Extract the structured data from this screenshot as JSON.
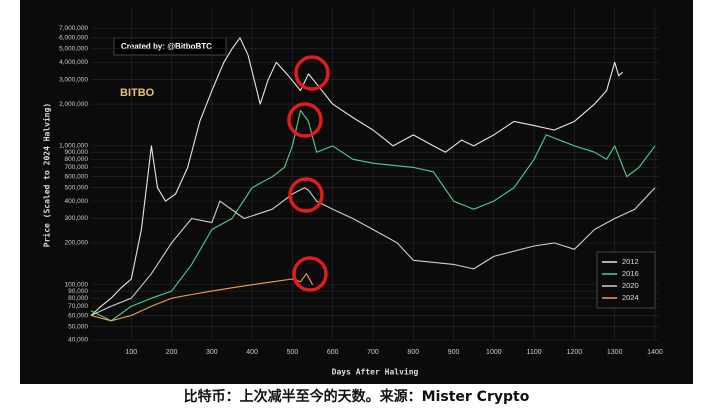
{
  "chart_data": {
    "type": "line",
    "ylabel": "Price (Scaled to 2024 Halving)",
    "xlabel": "Days After Halving",
    "annotations": [
      "Created by: @BitboBTC",
      "BITBO"
    ],
    "caption": "比特币：上次减半至今的天数。来源：Mister Crypto",
    "log_y": true,
    "grid": true,
    "legend": "lower right",
    "xlim": [
      0,
      1410
    ],
    "ylim": [
      40000,
      10000000
    ],
    "xticks": [
      100,
      200,
      300,
      400,
      500,
      600,
      700,
      800,
      900,
      1000,
      1100,
      1200,
      1300,
      1400
    ],
    "yticks": [
      {
        "value": 40000,
        "label": "40,000"
      },
      {
        "value": 50000,
        "label": "50,000"
      },
      {
        "value": 60000,
        "label": "60,000"
      },
      {
        "value": 70000,
        "label": "70,000"
      },
      {
        "value": 80000,
        "label": "80,000"
      },
      {
        "value": 90000,
        "label": "90,000"
      },
      {
        "value": 100000,
        "label": "100,000"
      },
      {
        "value": 200000,
        "label": "200,000"
      },
      {
        "value": 300000,
        "label": "300,000"
      },
      {
        "value": 400000,
        "label": "400,000"
      },
      {
        "value": 500000,
        "label": "500,000"
      },
      {
        "value": 600000,
        "label": "600,000"
      },
      {
        "value": 700000,
        "label": "700,000"
      },
      {
        "value": 800000,
        "label": "800,000"
      },
      {
        "value": 900000,
        "label": "900,000"
      },
      {
        "value": 1000000,
        "label": "1,000,000"
      },
      {
        "value": 2000000,
        "label": "2,000,000"
      },
      {
        "value": 3000000,
        "label": "3,000,000"
      },
      {
        "value": 4000000,
        "label": "4,000,000"
      },
      {
        "value": 5000000,
        "label": "5,000,000"
      },
      {
        "value": 6000000,
        "label": "6,000,000"
      },
      {
        "value": 7000000,
        "label": "7,000,000"
      }
    ],
    "series": [
      {
        "name": "2012",
        "color": "#e6e6e6",
        "x": [
          0,
          25,
          50,
          75,
          100,
          125,
          150,
          165,
          185,
          210,
          240,
          270,
          300,
          330,
          350,
          370,
          390,
          420,
          440,
          460,
          490,
          520,
          540,
          560,
          600,
          650,
          700,
          750,
          800,
          850,
          880,
          920,
          950,
          1000,
          1050,
          1100,
          1150,
          1200,
          1250,
          1280,
          1300,
          1310,
          1320
        ],
        "values": [
          60000,
          70000,
          80000,
          95000,
          110000,
          250000,
          1000000,
          500000,
          400000,
          450000,
          700000,
          1500000,
          2500000,
          4000000,
          5000000,
          6000000,
          4500000,
          2000000,
          3000000,
          4000000,
          3200000,
          2500000,
          3300000,
          2800000,
          2000000,
          1600000,
          1300000,
          1000000,
          1200000,
          1000000,
          900000,
          1100000,
          1000000,
          1200000,
          1500000,
          1400000,
          1300000,
          1500000,
          2000000,
          2500000,
          4000000,
          3200000,
          3400000
        ]
      },
      {
        "name": "2016",
        "color": "#4fd18b",
        "x": [
          0,
          50,
          100,
          150,
          200,
          250,
          300,
          350,
          400,
          450,
          480,
          500,
          520,
          540,
          560,
          600,
          650,
          700,
          800,
          850,
          900,
          950,
          1000,
          1050,
          1100,
          1130,
          1200,
          1250,
          1280,
          1300,
          1330,
          1360,
          1400
        ],
        "values": [
          65000,
          55000,
          70000,
          80000,
          90000,
          140000,
          250000,
          300000,
          500000,
          600000,
          700000,
          1000000,
          1800000,
          1500000,
          900000,
          1000000,
          800000,
          750000,
          700000,
          650000,
          400000,
          350000,
          400000,
          500000,
          800000,
          1200000,
          1000000,
          900000,
          800000,
          1000000,
          600000,
          700000,
          1000000
        ]
      },
      {
        "name": "2020",
        "color": "#cfcfcf",
        "x": [
          0,
          50,
          100,
          150,
          200,
          250,
          300,
          320,
          380,
          450,
          500,
          530,
          540,
          560,
          600,
          650,
          700,
          760,
          800,
          900,
          950,
          1000,
          1100,
          1150,
          1200,
          1250,
          1300,
          1350,
          1400
        ],
        "values": [
          60000,
          70000,
          80000,
          120000,
          200000,
          300000,
          280000,
          400000,
          300000,
          350000,
          450000,
          500000,
          480000,
          400000,
          350000,
          300000,
          250000,
          200000,
          150000,
          140000,
          130000,
          160000,
          190000,
          200000,
          180000,
          250000,
          300000,
          350000,
          500000
        ]
      },
      {
        "name": "2024",
        "color": "#f0a050",
        "x": [
          0,
          50,
          100,
          150,
          200,
          250,
          300,
          350,
          400,
          450,
          500,
          520,
          535,
          550
        ],
        "values": [
          60000,
          55000,
          60000,
          70000,
          80000,
          85000,
          90000,
          95000,
          100000,
          105000,
          110000,
          105000,
          120000,
          100000
        ]
      }
    ]
  }
}
